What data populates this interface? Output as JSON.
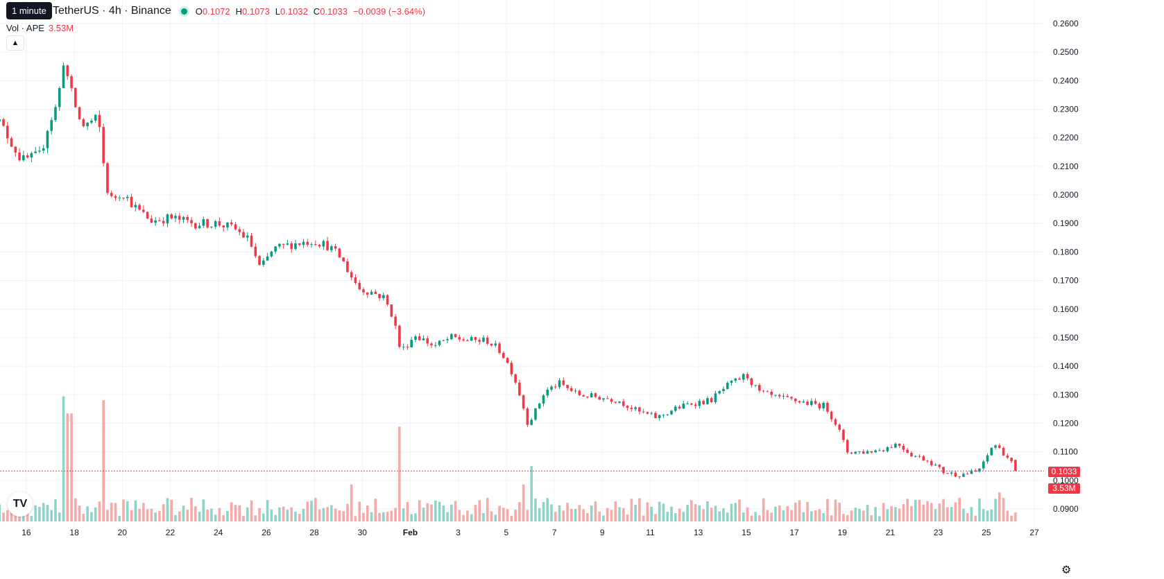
{
  "legend": {
    "title": "TetherUS · 4h · Binance",
    "tooltip": "1 minute",
    "open_label": "O",
    "open": "0.1072",
    "high_label": "H",
    "high": "0.1073",
    "low_label": "L",
    "low": "0.1032",
    "close_label": "C",
    "close": "0.1033",
    "change": "−0.0039 (−3.64%)"
  },
  "volume_legend": {
    "label": "Vol · APE",
    "value": "3.53M"
  },
  "icons": {
    "collapse": "chevron-up-icon",
    "logo": "tradingview-logo-icon",
    "settings": "gear-icon"
  },
  "colors": {
    "up": "#089981",
    "down": "#f23645",
    "up_volume": "#8fd3c8",
    "down_volume": "#f7a9a7",
    "grid": "#f0f3fa"
  },
  "last_price_tag": "0.1033",
  "last_volume_tag": "3.53M",
  "chart_data": {
    "type": "candlestick",
    "interval": "4h",
    "y_ticks": [
      "0.2600",
      "0.2500",
      "0.2400",
      "0.2300",
      "0.2200",
      "0.2100",
      "0.2000",
      "0.1900",
      "0.1800",
      "0.1700",
      "0.1600",
      "0.1500",
      "0.1400",
      "0.1300",
      "0.1200",
      "0.1100",
      "0.1000",
      "0.0900"
    ],
    "ylim": [
      0.0855,
      0.2635
    ],
    "x_ticks": [
      {
        "label": "16",
        "day": 16
      },
      {
        "label": "18",
        "day": 18
      },
      {
        "label": "20",
        "day": 20
      },
      {
        "label": "22",
        "day": 22
      },
      {
        "label": "24",
        "day": 24
      },
      {
        "label": "26",
        "day": 26
      },
      {
        "label": "28",
        "day": 28
      },
      {
        "label": "30",
        "day": 30
      },
      {
        "label": "Feb",
        "day": 32
      },
      {
        "label": "3",
        "day": 34
      },
      {
        "label": "5",
        "day": 36
      },
      {
        "label": "7",
        "day": 38
      },
      {
        "label": "9",
        "day": 40
      },
      {
        "label": "11",
        "day": 42
      },
      {
        "label": "13",
        "day": 44
      },
      {
        "label": "15",
        "day": 46
      },
      {
        "label": "17",
        "day": 48
      },
      {
        "label": "19",
        "day": 50
      },
      {
        "label": "21",
        "day": 52
      },
      {
        "label": "23",
        "day": 54
      },
      {
        "label": "25",
        "day": 56
      },
      {
        "label": "27",
        "day": 58
      }
    ],
    "x_domain": [
      14.5,
      58.0
    ],
    "anchors": [
      [
        14.55,
        0.23
      ],
      [
        15.2,
        0.221
      ],
      [
        15.8,
        0.212
      ],
      [
        16.6,
        0.214
      ],
      [
        16.9,
        0.224
      ],
      [
        17.3,
        0.232
      ],
      [
        17.55,
        0.247
      ],
      [
        17.9,
        0.235
      ],
      [
        18.3,
        0.224
      ],
      [
        18.8,
        0.226
      ],
      [
        19.0,
        0.227
      ],
      [
        19.2,
        0.212
      ],
      [
        19.45,
        0.198
      ],
      [
        20.0,
        0.201
      ],
      [
        20.6,
        0.195
      ],
      [
        21.2,
        0.191
      ],
      [
        22.0,
        0.192
      ],
      [
        23.0,
        0.19
      ],
      [
        24.0,
        0.19
      ],
      [
        24.7,
        0.188
      ],
      [
        25.3,
        0.184
      ],
      [
        25.75,
        0.174
      ],
      [
        26.3,
        0.181
      ],
      [
        27.2,
        0.183
      ],
      [
        28.0,
        0.184
      ],
      [
        28.6,
        0.182
      ],
      [
        29.1,
        0.178
      ],
      [
        29.5,
        0.172
      ],
      [
        29.9,
        0.167
      ],
      [
        30.4,
        0.166
      ],
      [
        30.9,
        0.164
      ],
      [
        31.3,
        0.157
      ],
      [
        31.6,
        0.145
      ],
      [
        32.2,
        0.151
      ],
      [
        33.0,
        0.147
      ],
      [
        33.7,
        0.15
      ],
      [
        34.5,
        0.149
      ],
      [
        35.2,
        0.149
      ],
      [
        35.8,
        0.145
      ],
      [
        36.3,
        0.137
      ],
      [
        36.6,
        0.129
      ],
      [
        36.9,
        0.12
      ],
      [
        37.2,
        0.124
      ],
      [
        37.6,
        0.131
      ],
      [
        38.2,
        0.134
      ],
      [
        39.0,
        0.13
      ],
      [
        40.0,
        0.129
      ],
      [
        40.7,
        0.128
      ],
      [
        41.5,
        0.124
      ],
      [
        42.3,
        0.122
      ],
      [
        43.0,
        0.125
      ],
      [
        43.7,
        0.127
      ],
      [
        44.5,
        0.128
      ],
      [
        45.2,
        0.133
      ],
      [
        46.0,
        0.137
      ],
      [
        46.5,
        0.131
      ],
      [
        47.2,
        0.129
      ],
      [
        48.0,
        0.128
      ],
      [
        48.6,
        0.127
      ],
      [
        49.3,
        0.126
      ],
      [
        49.8,
        0.119
      ],
      [
        50.2,
        0.11
      ],
      [
        51.0,
        0.11
      ],
      [
        51.7,
        0.111
      ],
      [
        52.3,
        0.113
      ],
      [
        52.9,
        0.109
      ],
      [
        53.6,
        0.107
      ],
      [
        54.2,
        0.103
      ],
      [
        54.8,
        0.102
      ],
      [
        55.6,
        0.103
      ],
      [
        55.9,
        0.106
      ],
      [
        56.3,
        0.113
      ],
      [
        56.8,
        0.109
      ],
      [
        57.3,
        0.1033
      ]
    ],
    "volume_spikes": [
      [
        17.55,
        0.95
      ],
      [
        17.8,
        0.82
      ],
      [
        19.2,
        0.92
      ],
      [
        31.5,
        0.72
      ],
      [
        37.0,
        0.42
      ],
      [
        36.7,
        0.28
      ],
      [
        29.5,
        0.28
      ],
      [
        56.5,
        0.22
      ]
    ]
  }
}
